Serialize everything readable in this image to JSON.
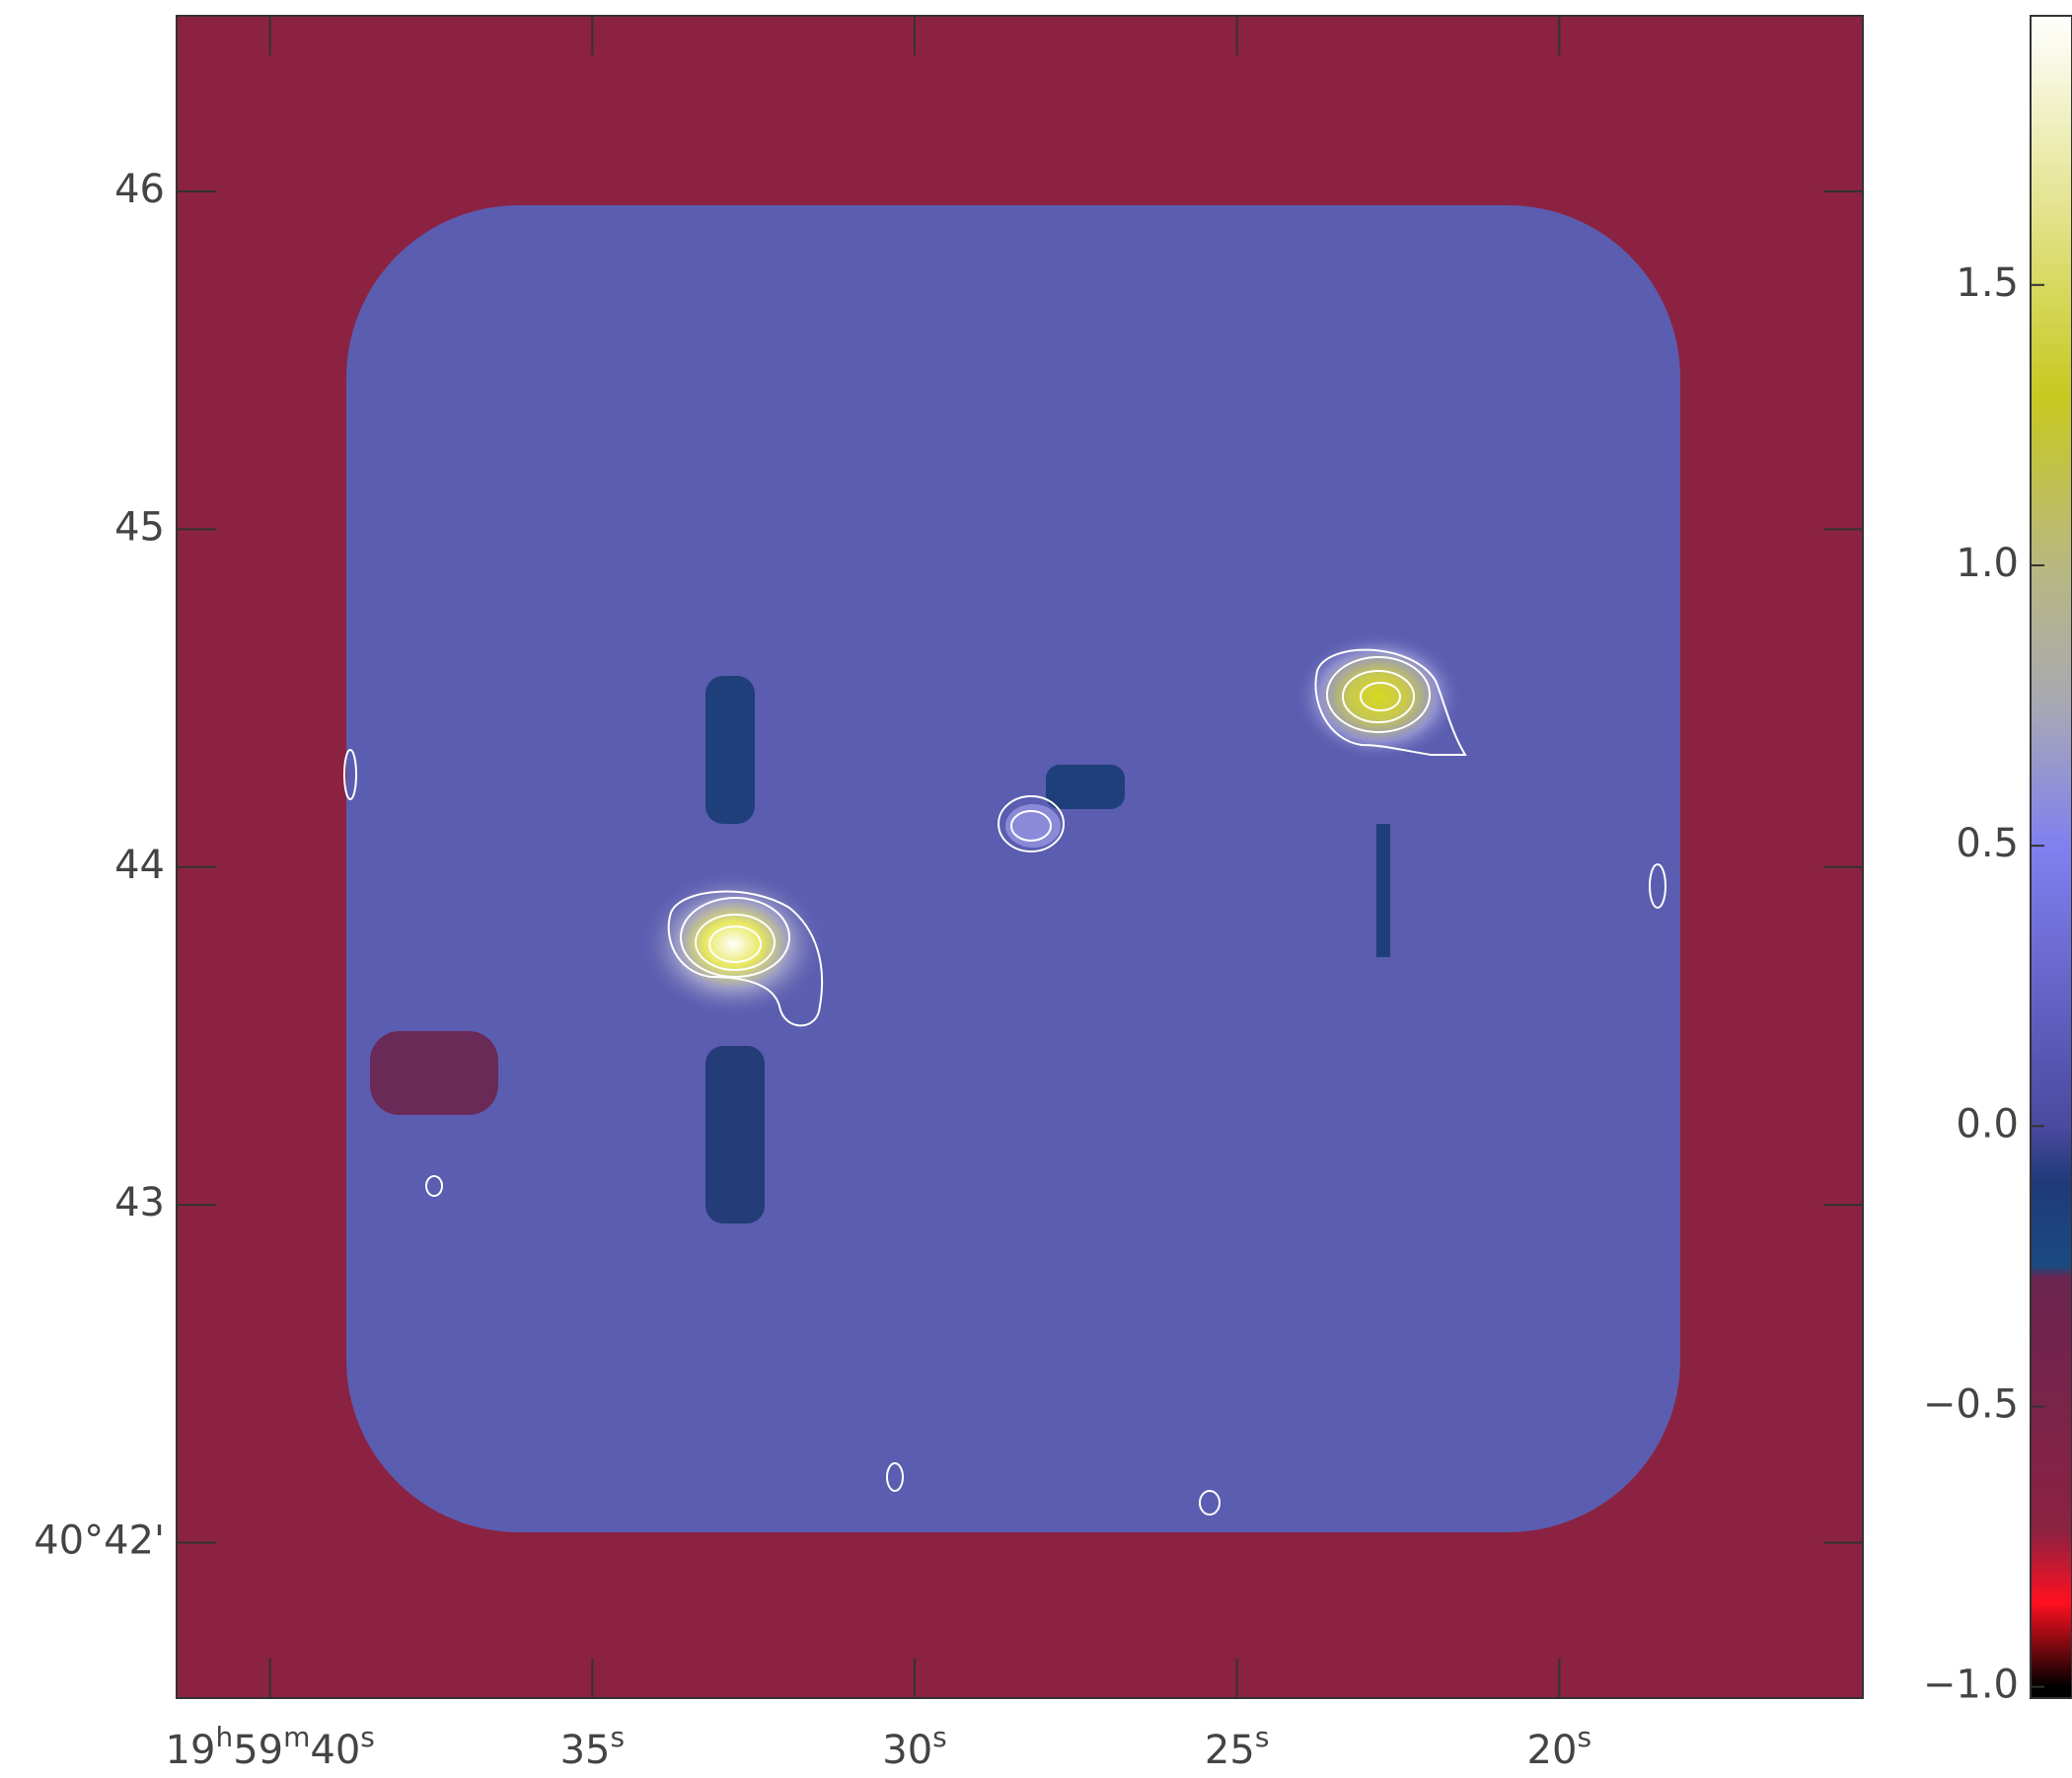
{
  "chart_data": {
    "type": "image",
    "xlim": [
      41.45,
      15.29
    ],
    "xticks": [
      {
        "value": 40,
        "label": "19h59m40s"
      },
      {
        "value": 35,
        "label": "35s"
      },
      {
        "value": 30,
        "label": "30s"
      },
      {
        "value": 25,
        "label": "25s"
      },
      {
        "value": 20,
        "label": "20s"
      }
    ],
    "ylim": [
      41.54,
      46.52
    ],
    "yticks": [
      46,
      45,
      44,
      43,
      {
        "value": 42,
        "label": "40°42'"
      }
    ],
    "clim": [
      -1.02,
      1.98
    ],
    "cticks": [
      {
        "value": -1,
        "label": "−1.0"
      },
      {
        "value": -0.5,
        "label": "−0.5"
      },
      {
        "value": 0,
        "label": "0.0"
      },
      {
        "value": 0.5,
        "label": "0.5"
      },
      {
        "value": 1,
        "label": "1.0"
      },
      {
        "value": 1.5,
        "label": "1.5"
      }
    ],
    "colormap": [
      [
        -1.0,
        "#000000"
      ],
      [
        -0.85,
        "#ff1020"
      ],
      [
        -0.72,
        "#8b2242"
      ],
      [
        -0.27,
        "#6a2550"
      ],
      [
        -0.25,
        "#1a4a80"
      ],
      [
        -0.1,
        "#203a78"
      ],
      [
        0.0,
        "#4a4aa0"
      ],
      [
        0.5,
        "#8080f0"
      ],
      [
        0.75,
        "#a8a8b4"
      ],
      [
        1.0,
        "#b8b880"
      ],
      [
        1.3,
        "#c8c820"
      ],
      [
        1.98,
        "#ffffff"
      ]
    ]
  }
}
